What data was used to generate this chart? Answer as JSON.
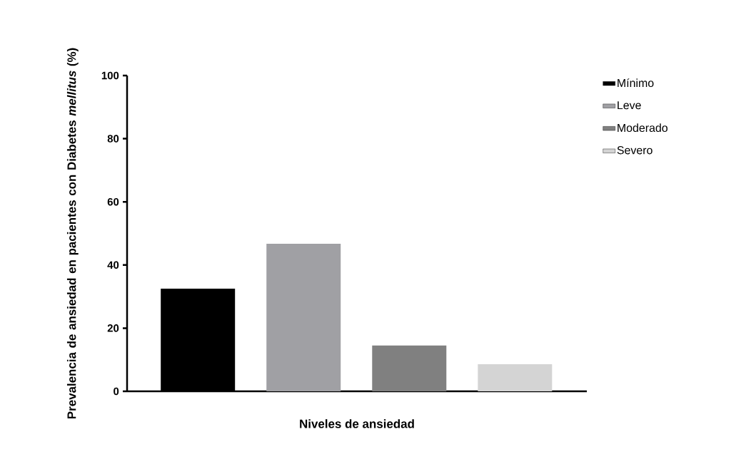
{
  "chart_data": {
    "type": "bar",
    "ylabel": "Prevalencia de ansiedad en pacientes con Diabetes *mellitus* (%)",
    "xlabel": "Niveles de ansiedad",
    "categories": [
      null,
      null,
      null,
      null
    ],
    "series": [
      {
        "name": "Mínimo",
        "color": "#000000",
        "values": [
          32.5,
          null,
          null,
          null
        ]
      },
      {
        "name": "Leve",
        "color": "#a0a0a4",
        "values": [
          null,
          46.7,
          null,
          null
        ]
      },
      {
        "name": "Moderado",
        "color": "#808080",
        "values": [
          null,
          null,
          14.5,
          null
        ]
      },
      {
        "name": "Severo",
        "color": "#d4d4d4",
        "values": [
          null,
          null,
          null,
          8.6
        ]
      }
    ],
    "ylim": [
      0,
      100
    ],
    "yticks": [
      0,
      20,
      40,
      60,
      80,
      100
    ],
    "tick_labels": "y",
    "legend": "top right",
    "grid": false
  }
}
